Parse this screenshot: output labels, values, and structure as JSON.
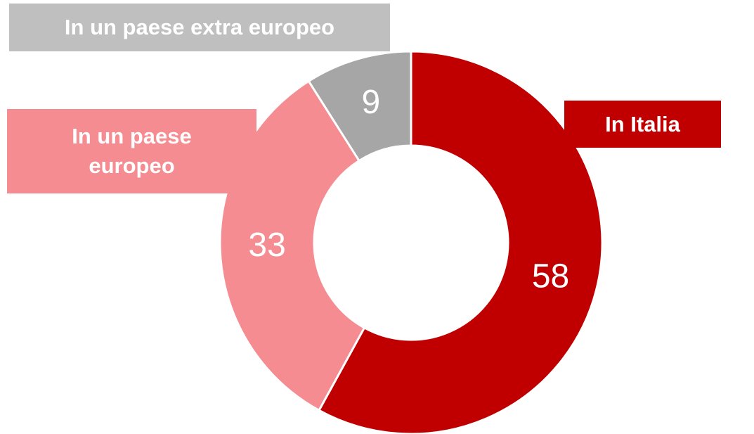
{
  "chart_data": {
    "type": "donut",
    "categories": [
      "In Italia",
      "In un paese europeo",
      "In un paese extra europeo"
    ],
    "values": [
      58,
      33,
      9
    ],
    "colors": [
      "#c00000",
      "#f58c91",
      "#a6a6a6"
    ]
  }
}
